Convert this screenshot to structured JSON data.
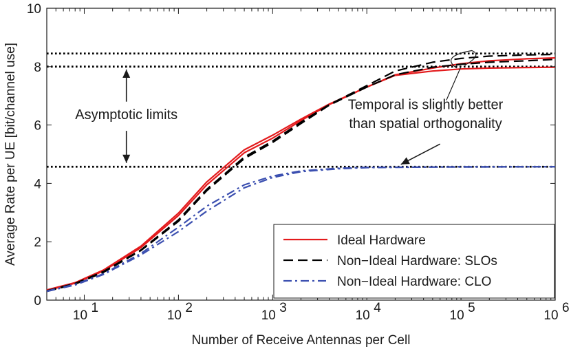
{
  "chart_data": {
    "type": "line",
    "xscale": "log",
    "xlabel": "Number of Receive Antennas per Cell",
    "ylabel": "Average Rate per UE [bit/channel use]",
    "xlim": [
      4,
      1000000
    ],
    "ylim": [
      0,
      10
    ],
    "x_ticks": [
      {
        "value": 10,
        "base": "10",
        "exp": "1"
      },
      {
        "value": 100,
        "base": "10",
        "exp": "2"
      },
      {
        "value": 1000,
        "base": "10",
        "exp": "3"
      },
      {
        "value": 10000,
        "base": "10",
        "exp": "4"
      },
      {
        "value": 100000,
        "base": "10",
        "exp": "5"
      },
      {
        "value": 1000000,
        "base": "10",
        "exp": "6"
      }
    ],
    "y_ticks": [
      {
        "value": 0,
        "label": "0"
      },
      {
        "value": 2,
        "label": "2"
      },
      {
        "value": 4,
        "label": "4"
      },
      {
        "value": 6,
        "label": "6"
      },
      {
        "value": 8,
        "label": "8"
      },
      {
        "value": 10,
        "label": "10"
      }
    ],
    "grid": false,
    "legend_position": "bottom-right",
    "legend": [
      {
        "label": "Ideal Hardware",
        "color": "#e31a1c",
        "dash": "solid"
      },
      {
        "label": "Non−Ideal Hardware: SLOs",
        "color": "#000000",
        "dash": "dashed"
      },
      {
        "label": "Non−Ideal Hardware: CLO",
        "color": "#3b4fb0",
        "dash": "dashdot"
      }
    ],
    "asymptotes": [
      {
        "y": 8.45,
        "color": "#000000",
        "dash": "dotted"
      },
      {
        "y": 8.0,
        "color": "#000000",
        "dash": "dotted"
      },
      {
        "y": 4.57,
        "color": "#000000",
        "dash": "dotted"
      }
    ],
    "series": [
      {
        "color": "#e31a1c",
        "dash": "solid",
        "x": [
          4,
          8,
          16,
          40,
          100,
          200,
          500,
          1000,
          2000,
          4000,
          10000,
          20000,
          50000,
          100000,
          200000,
          500000,
          1000000
        ],
        "y": [
          0.33,
          0.58,
          1.0,
          1.8,
          2.9,
          3.95,
          5.05,
          5.55,
          6.15,
          6.7,
          7.3,
          7.7,
          7.85,
          7.92,
          7.95,
          7.97,
          7.98
        ]
      },
      {
        "color": "#e31a1c",
        "dash": "solid",
        "x": [
          4,
          8,
          16,
          40,
          100,
          200,
          500,
          1000,
          2000,
          4000,
          10000,
          20000,
          50000,
          100000,
          200000,
          500000,
          1000000
        ],
        "y": [
          0.35,
          0.6,
          1.03,
          1.85,
          2.98,
          4.05,
          5.15,
          5.65,
          6.2,
          6.72,
          7.3,
          7.72,
          7.95,
          8.1,
          8.2,
          8.27,
          8.3
        ]
      },
      {
        "color": "#000000",
        "dash": "dashed",
        "x": [
          4,
          8,
          16,
          40,
          100,
          200,
          500,
          1000,
          2000,
          4000,
          10000,
          20000,
          50000,
          100000,
          200000,
          500000,
          1000000
        ],
        "y": [
          0.3,
          0.55,
          0.95,
          1.7,
          2.7,
          3.75,
          4.85,
          5.4,
          6.05,
          6.68,
          7.3,
          7.72,
          7.98,
          8.08,
          8.15,
          8.2,
          8.25
        ]
      },
      {
        "color": "#000000",
        "dash": "dashed",
        "x": [
          4,
          8,
          16,
          40,
          100,
          200,
          500,
          1000,
          2000,
          4000,
          10000,
          20000,
          50000,
          100000,
          200000,
          500000,
          1000000
        ],
        "y": [
          0.32,
          0.57,
          0.98,
          1.72,
          2.75,
          3.8,
          4.9,
          5.45,
          6.1,
          6.7,
          7.35,
          7.85,
          8.15,
          8.28,
          8.36,
          8.4,
          8.42
        ]
      },
      {
        "color": "#3b4fb0",
        "dash": "dashdot",
        "x": [
          4,
          8,
          16,
          40,
          100,
          200,
          500,
          1000,
          2000,
          5000,
          10000,
          50000,
          100000,
          1000000
        ],
        "y": [
          0.3,
          0.52,
          0.88,
          1.55,
          2.35,
          3.05,
          3.85,
          4.2,
          4.4,
          4.5,
          4.54,
          4.56,
          4.56,
          4.57
        ]
      },
      {
        "color": "#3b4fb0",
        "dash": "dashdot",
        "x": [
          4,
          8,
          16,
          40,
          100,
          200,
          500,
          1000,
          2000,
          5000,
          10000,
          50000,
          100000,
          1000000
        ],
        "y": [
          0.31,
          0.54,
          0.9,
          1.6,
          2.5,
          3.22,
          3.95,
          4.25,
          4.43,
          4.52,
          4.55,
          4.56,
          4.57,
          4.57
        ]
      }
    ],
    "annotations": [
      {
        "text": "Asymptotic limits",
        "x": 28,
        "y": 6.2
      },
      {
        "text": "Temporal is slightly better",
        "x": 42000,
        "y": 6.55
      },
      {
        "text": "than spatial orthogonality",
        "x": 42000,
        "y": 5.9
      }
    ]
  }
}
